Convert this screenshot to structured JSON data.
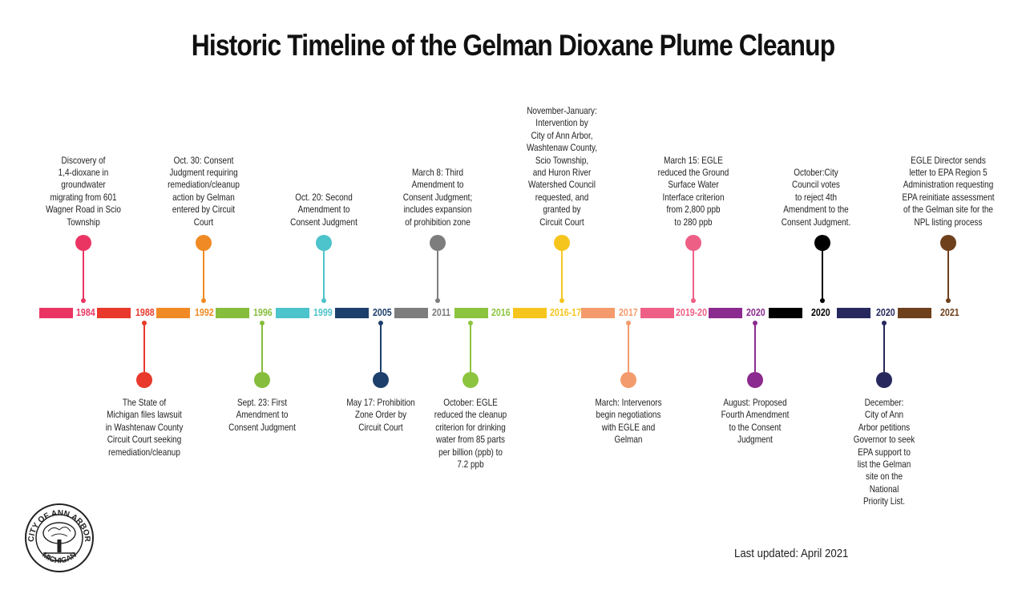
{
  "title": "Historic Timeline of the Gelman Dioxane Plume Cleanup",
  "footer": {
    "updated": "Last updated: April 2021"
  },
  "seal": {
    "top_text": "CITY OF ANN ARBOR",
    "bottom_text": "MICHIGAN"
  },
  "events": [
    {
      "year": "1984",
      "color": "#ea3563",
      "position": "above",
      "lines": [
        "Discovery of",
        "1,4-dioxane in",
        "groundwater",
        "migrating from 601",
        "Wagner Road in Scio",
        "Township"
      ]
    },
    {
      "year": "1988",
      "color": "#e8392c",
      "position": "below",
      "lines": [
        "The State of",
        "Michigan files lawsuit",
        "in Washtenaw County",
        "Circuit Court seeking",
        "remediation/cleanup"
      ]
    },
    {
      "year": "1992",
      "color": "#f08a24",
      "position": "above",
      "lines": [
        "Oct. 30:  Consent",
        "Judgment requiring",
        "remediation/cleanup",
        "action by Gelman",
        "entered by Circuit",
        "Court"
      ]
    },
    {
      "year": "1996",
      "color": "#86bd3c",
      "position": "below",
      "lines": [
        "Sept. 23: First",
        "Amendment to",
        "Consent Judgment"
      ]
    },
    {
      "year": "1999",
      "color": "#4dc3cb",
      "position": "above",
      "lines": [
        "Oct. 20: Second",
        "Amendment to",
        "Consent Judgment"
      ]
    },
    {
      "year": "2005",
      "color": "#1d3f6b",
      "position": "below",
      "lines": [
        "May 17: Prohibition",
        "Zone Order by",
        "Circuit Court"
      ]
    },
    {
      "year": "2011",
      "color": "#7d7d7d",
      "position": "above",
      "lines": [
        "March 8: Third",
        "Amendment to",
        "Consent Judgment;",
        "includes expansion",
        "of prohibition zone"
      ]
    },
    {
      "year": "2016",
      "color": "#8cc43f",
      "position": "below",
      "lines": [
        "October: EGLE",
        "reduced the cleanup",
        "criterion for drinking",
        "water from 85 parts",
        "per billion (ppb) to",
        "7.2 ppb"
      ]
    },
    {
      "year": "2016-17",
      "color": "#f6c51d",
      "position": "above",
      "lines": [
        "November-January:",
        "Intervention by",
        "City of Ann Arbor,",
        "Washtenaw County,",
        "Scio Township,",
        "and Huron River",
        "Watershed Council",
        "requested, and",
        "granted by",
        "Circuit Court"
      ]
    },
    {
      "year": "2017",
      "color": "#f39b6c",
      "position": "below",
      "lines": [
        "March: Intervenors",
        "begin negotiations",
        "with EGLE and",
        "Gelman"
      ]
    },
    {
      "year": "2019-20",
      "color": "#ee5f86",
      "position": "above",
      "lines": [
        "March 15: EGLE",
        "reduced the Ground",
        "Surface Water",
        "Interface criterion",
        "from 2,800 ppb",
        "to 280 ppb"
      ]
    },
    {
      "year": "2020",
      "color": "#8b2a8f",
      "position": "below",
      "lines": [
        "August: Proposed",
        "Fourth Amendment",
        "to the Consent",
        "Judgment"
      ]
    },
    {
      "year": "2020",
      "color": "#000000",
      "position": "above",
      "lines": [
        "October:City",
        "Council votes",
        "to reject 4th",
        "Amendment to the",
        "Consent Judgment."
      ]
    },
    {
      "year": "2020",
      "color": "#27295e",
      "position": "below",
      "lines": [
        "December:",
        "City of Ann",
        "Arbor petitions",
        "Governor to seek",
        "EPA support to",
        "list the Gelman",
        "site on the",
        "National",
        "Priority List."
      ]
    },
    {
      "year": "2021",
      "color": "#6e401c",
      "position": "above",
      "lines": [
        "EGLE Director sends",
        "letter to EPA Region 5",
        "Administration requesting",
        "EPA reinitiate assessment",
        "of the Gelman site for the",
        "NPL listing process"
      ]
    }
  ]
}
